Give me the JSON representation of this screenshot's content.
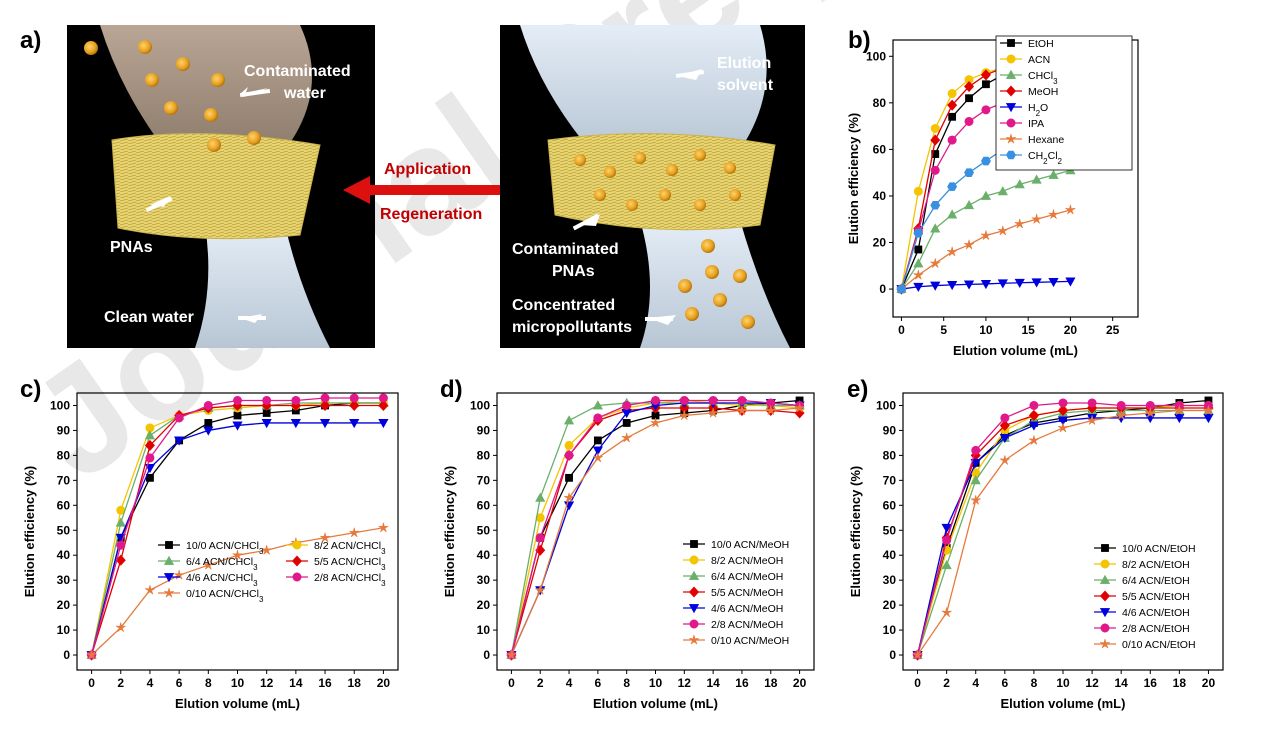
{
  "watermark": "Journal Pre-proof",
  "panel_labels": [
    "a)",
    "b)",
    "c)",
    "d)",
    "e)"
  ],
  "illustration": {
    "left_labels": [
      "Contaminated",
      "water",
      "PNAs",
      "Clean water"
    ],
    "right_labels": [
      "Elution",
      "solvent",
      "Contaminated",
      "PNAs",
      "Concentrated",
      "micropollutants"
    ],
    "arrow_top": "Application",
    "arrow_bottom": "Regeneration",
    "arrow_color": "#dd1010",
    "text_color": "#ffffff"
  },
  "chart_data": [
    {
      "type": "line",
      "panel": "b)",
      "xlabel": "Elution volume (mL)",
      "ylabel": "Elution efficiency (%)",
      "xlim": [
        -1,
        28
      ],
      "ylim": [
        -12,
        107
      ],
      "xticks": [
        0,
        5,
        10,
        15,
        20,
        25
      ],
      "yticks": [
        0,
        20,
        40,
        60,
        80,
        100
      ],
      "legend_position": "top-right",
      "x": [
        0,
        2,
        4,
        6,
        8,
        10,
        12,
        14,
        16,
        18,
        20
      ],
      "series": [
        {
          "name": "EtOH",
          "color": "#000000",
          "marker": "square",
          "values": [
            0,
            17,
            58,
            74,
            82,
            88,
            92,
            95,
            97,
            98,
            99
          ]
        },
        {
          "name": "ACN",
          "color": "#f5c400",
          "marker": "circle",
          "values": [
            0,
            42,
            69,
            84,
            90,
            93,
            95,
            97,
            98,
            99,
            100
          ]
        },
        {
          "name": "CHCl₃",
          "color": "#6aaf6a",
          "marker": "triangle-up",
          "values": [
            0,
            11,
            26,
            32,
            36,
            40,
            42,
            45,
            47,
            49,
            51
          ]
        },
        {
          "name": "MeOH",
          "color": "#e00000",
          "marker": "diamond",
          "values": [
            0,
            26,
            64,
            79,
            87,
            92,
            95,
            97,
            98,
            98,
            99
          ]
        },
        {
          "name": "H₂O",
          "color": "#0000dd",
          "marker": "triangle-down",
          "values": [
            0,
            1,
            1.5,
            1.8,
            2,
            2.2,
            2.5,
            2.7,
            2.9,
            3.1,
            3.3
          ]
        },
        {
          "name": "IPA",
          "color": "#e0188a",
          "marker": "circle",
          "values": [
            0,
            25,
            51,
            64,
            72,
            77,
            80,
            82,
            83,
            84,
            84
          ]
        },
        {
          "name": "Hexane",
          "color": "#e67a3c",
          "marker": "star",
          "values": [
            0,
            6,
            11,
            16,
            19,
            23,
            25,
            28,
            30,
            32,
            34
          ]
        },
        {
          "name": "CH₂Cl₂",
          "color": "#3a90e0",
          "marker": "hexagon",
          "values": [
            0,
            24,
            36,
            44,
            50,
            55,
            60,
            63,
            66,
            69,
            70
          ]
        }
      ]
    },
    {
      "type": "line",
      "panel": "c)",
      "xlabel": "Elution volume (mL)",
      "ylabel": "Elution efficiency (%)",
      "xlim": [
        -1,
        21
      ],
      "ylim": [
        -6,
        105
      ],
      "xticks": [
        0,
        2,
        4,
        6,
        8,
        10,
        12,
        14,
        16,
        18,
        20
      ],
      "yticks": [
        0,
        10,
        20,
        30,
        40,
        50,
        60,
        70,
        80,
        90,
        100
      ],
      "legend_position": "bottom-right",
      "x": [
        0,
        2,
        4,
        6,
        8,
        10,
        12,
        14,
        16,
        18,
        20
      ],
      "series": [
        {
          "name": "10/0 ACN/CHCl₃",
          "color": "#000000",
          "marker": "square",
          "values": [
            0,
            47,
            71,
            86,
            93,
            96,
            97,
            98,
            100,
            101,
            101
          ]
        },
        {
          "name": "8/2 ACN/CHCl₃",
          "color": "#f5c400",
          "marker": "circle",
          "values": [
            0,
            58,
            91,
            96,
            98,
            99,
            100,
            100,
            101,
            101,
            101
          ]
        },
        {
          "name": "6/4 ACN/CHCl₃",
          "color": "#6aaf6a",
          "marker": "triangle-up",
          "values": [
            0,
            53,
            88,
            96,
            99,
            100,
            100,
            101,
            101,
            101,
            101
          ]
        },
        {
          "name": "5/5 ACN/CHCl₃",
          "color": "#e00000",
          "marker": "diamond",
          "values": [
            0,
            38,
            84,
            96,
            99,
            100,
            100,
            100,
            100,
            100,
            100
          ]
        },
        {
          "name": "4/6 ACN/CHCl₃",
          "color": "#0000dd",
          "marker": "triangle-down",
          "values": [
            0,
            47,
            75,
            86,
            90,
            92,
            93,
            93,
            93,
            93,
            93
          ]
        },
        {
          "name": "2/8 ACN/CHCl₃",
          "color": "#e0188a",
          "marker": "circle",
          "values": [
            0,
            44,
            79,
            95,
            100,
            102,
            102,
            102,
            103,
            103,
            103
          ]
        },
        {
          "name": "0/10 ACN/CHCl₃",
          "color": "#e67a3c",
          "marker": "star",
          "values": [
            0,
            11,
            26,
            32,
            36,
            40,
            42,
            45,
            47,
            49,
            51
          ]
        }
      ]
    },
    {
      "type": "line",
      "panel": "d)",
      "xlabel": "Elution volume (mL)",
      "ylabel": "Elution efficiency (%)",
      "xlim": [
        -1,
        21
      ],
      "ylim": [
        -6,
        105
      ],
      "xticks": [
        0,
        2,
        4,
        6,
        8,
        10,
        12,
        14,
        16,
        18,
        20
      ],
      "yticks": [
        0,
        10,
        20,
        30,
        40,
        50,
        60,
        70,
        80,
        90,
        100
      ],
      "legend_position": "bottom-right",
      "x": [
        0,
        2,
        4,
        6,
        8,
        10,
        12,
        14,
        16,
        18,
        20
      ],
      "series": [
        {
          "name": "10/0 ACN/MeOH",
          "color": "#000000",
          "marker": "square",
          "values": [
            0,
            47,
            71,
            86,
            93,
            96,
            97,
            98,
            100,
            101,
            102
          ]
        },
        {
          "name": "8/2 ACN/MeOH",
          "color": "#f5c400",
          "marker": "circle",
          "values": [
            0,
            55,
            84,
            95,
            99,
            101,
            102,
            101,
            100,
            100,
            99
          ]
        },
        {
          "name": "6/4 ACN/MeOH",
          "color": "#6aaf6a",
          "marker": "triangle-up",
          "values": [
            0,
            63,
            94,
            100,
            101,
            101,
            101,
            101,
            101,
            100,
            100
          ]
        },
        {
          "name": "5/5 ACN/MeOH",
          "color": "#e00000",
          "marker": "diamond",
          "values": [
            0,
            42,
            80,
            94,
            98,
            99,
            99,
            99,
            98,
            98,
            97
          ]
        },
        {
          "name": "4/6 ACN/MeOH",
          "color": "#0000dd",
          "marker": "triangle-down",
          "values": [
            0,
            26,
            60,
            82,
            97,
            100,
            101,
            101,
            101,
            101,
            100
          ]
        },
        {
          "name": "2/8 ACN/MeOH",
          "color": "#e0188a",
          "marker": "circle",
          "values": [
            0,
            47,
            80,
            95,
            100,
            102,
            102,
            102,
            102,
            101,
            100
          ]
        },
        {
          "name": "0/10 ACN/MeOH",
          "color": "#e67a3c",
          "marker": "star",
          "values": [
            0,
            26,
            63,
            79,
            87,
            93,
            96,
            97,
            98,
            98,
            99
          ]
        }
      ]
    },
    {
      "type": "line",
      "panel": "e)",
      "xlabel": "Elution volume (mL)",
      "ylabel": "Elution efficiency (%)",
      "xlim": [
        -1,
        21
      ],
      "ylim": [
        -6,
        105
      ],
      "xticks": [
        0,
        2,
        4,
        6,
        8,
        10,
        12,
        14,
        16,
        18,
        20
      ],
      "yticks": [
        0,
        10,
        20,
        30,
        40,
        50,
        60,
        70,
        80,
        90,
        100
      ],
      "legend_position": "bottom-right",
      "x": [
        0,
        2,
        4,
        6,
        8,
        10,
        12,
        14,
        16,
        18,
        20
      ],
      "series": [
        {
          "name": "10/0 ACN/EtOH",
          "color": "#000000",
          "marker": "square",
          "values": [
            0,
            43,
            77,
            88,
            93,
            95,
            97,
            98,
            99,
            101,
            102
          ]
        },
        {
          "name": "8/2 ACN/EtOH",
          "color": "#f5c400",
          "marker": "circle",
          "values": [
            0,
            42,
            73,
            90,
            96,
            98,
            99,
            99,
            99,
            100,
            100
          ]
        },
        {
          "name": "6/4 ACN/EtOH",
          "color": "#6aaf6a",
          "marker": "triangle-up",
          "values": [
            0,
            36,
            70,
            87,
            94,
            97,
            98,
            98,
            98,
            98,
            98
          ]
        },
        {
          "name": "5/5 ACN/EtOH",
          "color": "#e00000",
          "marker": "diamond",
          "values": [
            0,
            47,
            80,
            92,
            96,
            98,
            99,
            99,
            99,
            99,
            99
          ]
        },
        {
          "name": "4/6 ACN/EtOH",
          "color": "#0000dd",
          "marker": "triangle-down",
          "values": [
            0,
            51,
            77,
            87,
            92,
            94,
            95,
            95,
            95,
            95,
            95
          ]
        },
        {
          "name": "2/8 ACN/EtOH",
          "color": "#e0188a",
          "marker": "circle",
          "values": [
            0,
            46,
            82,
            95,
            100,
            101,
            101,
            100,
            100,
            100,
            100
          ]
        },
        {
          "name": "0/10 ACN/EtOH",
          "color": "#e67a3c",
          "marker": "star",
          "values": [
            0,
            17,
            62,
            78,
            86,
            91,
            94,
            96,
            97,
            98,
            98
          ]
        }
      ]
    }
  ]
}
